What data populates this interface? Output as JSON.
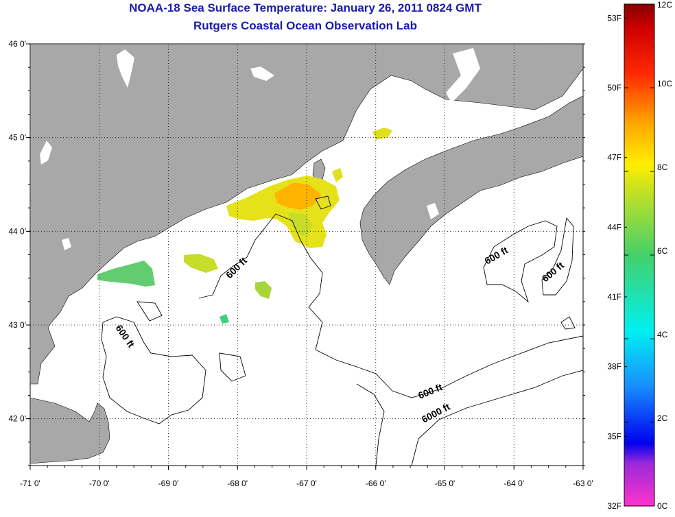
{
  "header": {
    "title": "NOAA-18 Sea Surface Temperature:  January 26, 2011 0824 GMT",
    "subtitle": "Rutgers Coastal Ocean Observation Lab"
  },
  "map": {
    "lon_range": [
      -71,
      -63
    ],
    "lat_range": [
      41.5,
      46
    ],
    "lon_ticks": [
      {
        "value": -71,
        "label": "-71 0'"
      },
      {
        "value": -70,
        "label": "-70 0'"
      },
      {
        "value": -69,
        "label": "-69 0'"
      },
      {
        "value": -68,
        "label": "-68 0'"
      },
      {
        "value": -67,
        "label": "-67 0'"
      },
      {
        "value": -66,
        "label": "-66 0'"
      },
      {
        "value": -65,
        "label": "-65 0'"
      },
      {
        "value": -64,
        "label": "-64 0'"
      },
      {
        "value": -63,
        "label": "-63 0'"
      }
    ],
    "lat_ticks": [
      {
        "value": 46,
        "label": "46 0'"
      },
      {
        "value": 45,
        "label": "45 0'"
      },
      {
        "value": 44,
        "label": "44 0'"
      },
      {
        "value": 43,
        "label": "43 0'"
      },
      {
        "value": 42,
        "label": "42 0'"
      }
    ],
    "contour_labels": [
      "600 ft",
      "600 ft",
      "600 ft",
      "600 ft",
      "600 ft",
      "6000 ft"
    ],
    "land_color": "#a8a8a8",
    "water_color": "#ffffff"
  },
  "colorbar": {
    "fahrenheit_labels": [
      "53F",
      "50F",
      "47F",
      "44F",
      "41F",
      "38F",
      "35F",
      "32F"
    ],
    "celsius_labels": [
      "12C",
      "10C",
      "8C",
      "6C",
      "4C",
      "2C",
      "0C"
    ],
    "range_c": [
      0,
      12
    ]
  }
}
